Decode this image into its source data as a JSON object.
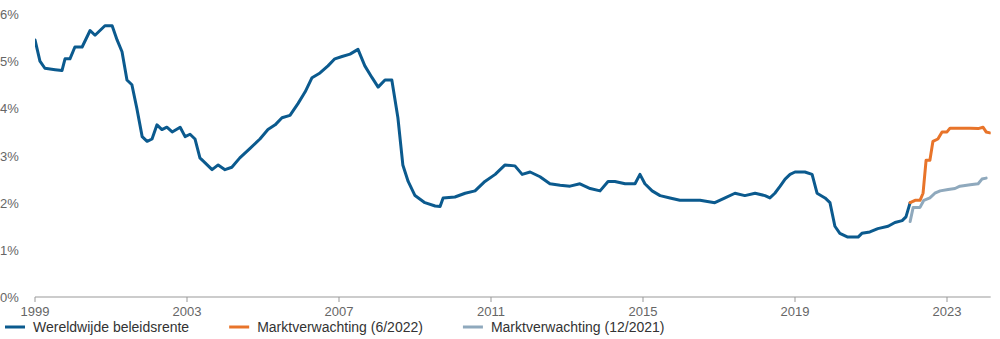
{
  "chart_data": {
    "type": "line",
    "xlim": [
      1999,
      2024.15
    ],
    "xticks": [
      1999,
      2003,
      2007,
      2011,
      2015,
      2019,
      2023
    ],
    "ylim": [
      0,
      6
    ],
    "yticks": [
      {
        "value": 0,
        "label": "0%"
      },
      {
        "value": 1,
        "label": "1%"
      },
      {
        "value": 2,
        "label": "2%"
      },
      {
        "value": 3,
        "label": "3%"
      },
      {
        "value": 4,
        "label": "4%"
      },
      {
        "value": 5,
        "label": "5%"
      },
      {
        "value": 6,
        "label": "6%"
      }
    ],
    "grid": false,
    "legend": "bottom",
    "series": [
      {
        "name": "Wereldwijde beleidsrente",
        "color": "#0b5a8e",
        "x": [
          1999.0,
          1999.13,
          1999.26,
          1999.53,
          1999.71,
          1999.79,
          1999.92,
          2000.05,
          2000.24,
          2000.45,
          2000.58,
          2000.71,
          2000.84,
          2001.03,
          2001.16,
          2001.29,
          2001.42,
          2001.55,
          2001.68,
          2001.82,
          2001.95,
          2002.08,
          2002.21,
          2002.34,
          2002.47,
          2002.61,
          2002.82,
          2002.95,
          2003.08,
          2003.21,
          2003.34,
          2003.47,
          2003.66,
          2003.82,
          2004.0,
          2004.18,
          2004.39,
          2004.66,
          2004.92,
          2005.13,
          2005.32,
          2005.5,
          2005.71,
          2005.92,
          2006.11,
          2006.29,
          2006.5,
          2006.71,
          2006.89,
          2007.08,
          2007.29,
          2007.5,
          2007.68,
          2007.87,
          2008.03,
          2008.21,
          2008.39,
          2008.55,
          2008.68,
          2008.82,
          2009.0,
          2009.26,
          2009.53,
          2009.66,
          2009.74,
          2010.05,
          2010.32,
          2010.58,
          2010.84,
          2011.11,
          2011.37,
          2011.63,
          2011.82,
          2012.03,
          2012.29,
          2012.55,
          2012.82,
          2013.08,
          2013.34,
          2013.61,
          2013.87,
          2014.08,
          2014.26,
          2014.53,
          2014.79,
          2014.92,
          2015.05,
          2015.24,
          2015.45,
          2015.71,
          2015.97,
          2016.5,
          2016.89,
          2017.16,
          2017.42,
          2017.68,
          2017.95,
          2018.21,
          2018.34,
          2018.47,
          2018.61,
          2018.74,
          2018.87,
          2019.0,
          2019.26,
          2019.45,
          2019.58,
          2019.79,
          2019.92,
          2020.05,
          2020.18,
          2020.39,
          2020.66,
          2020.76,
          2020.97,
          2021.18,
          2021.45,
          2021.63,
          2021.82,
          2021.92,
          2022.03
        ],
        "values": [
          5.45,
          5.0,
          4.85,
          4.82,
          4.8,
          5.05,
          5.05,
          5.3,
          5.3,
          5.65,
          5.55,
          5.65,
          5.75,
          5.75,
          5.45,
          5.2,
          4.6,
          4.5,
          4.0,
          3.4,
          3.3,
          3.35,
          3.65,
          3.55,
          3.6,
          3.5,
          3.6,
          3.4,
          3.45,
          3.35,
          2.95,
          2.85,
          2.7,
          2.8,
          2.7,
          2.75,
          2.95,
          3.15,
          3.35,
          3.55,
          3.65,
          3.8,
          3.85,
          4.1,
          4.35,
          4.65,
          4.75,
          4.9,
          5.05,
          5.1,
          5.15,
          5.25,
          4.9,
          4.65,
          4.45,
          4.6,
          4.6,
          3.8,
          2.8,
          2.45,
          2.15,
          2.0,
          1.93,
          1.92,
          2.1,
          2.12,
          2.2,
          2.25,
          2.45,
          2.6,
          2.8,
          2.78,
          2.6,
          2.65,
          2.55,
          2.4,
          2.37,
          2.35,
          2.4,
          2.3,
          2.25,
          2.45,
          2.45,
          2.4,
          2.4,
          2.6,
          2.4,
          2.25,
          2.15,
          2.1,
          2.05,
          2.05,
          2.0,
          2.1,
          2.2,
          2.15,
          2.2,
          2.15,
          2.1,
          2.2,
          2.35,
          2.5,
          2.6,
          2.65,
          2.65,
          2.6,
          2.2,
          2.1,
          2.0,
          1.5,
          1.35,
          1.27,
          1.27,
          1.35,
          1.38,
          1.45,
          1.5,
          1.58,
          1.62,
          1.7,
          2.0
        ]
      },
      {
        "name": "Marktverwachting (6/2022)",
        "color": "#e8742a",
        "x": [
          2022.03,
          2022.16,
          2022.29,
          2022.37,
          2022.45,
          2022.55,
          2022.63,
          2022.76,
          2022.87,
          2023.0,
          2023.08,
          2023.34,
          2023.61,
          2023.82,
          2023.95,
          2024.03,
          2024.13
        ],
        "values": [
          2.0,
          2.05,
          2.05,
          2.2,
          2.9,
          2.9,
          3.3,
          3.35,
          3.5,
          3.5,
          3.58,
          3.58,
          3.58,
          3.57,
          3.6,
          3.5,
          3.48
        ]
      },
      {
        "name": "Marktverwachting (12/2021)",
        "color": "#8fa9bd",
        "x": [
          2022.03,
          2022.11,
          2022.29,
          2022.39,
          2022.55,
          2022.68,
          2022.82,
          2023.03,
          2023.21,
          2023.34,
          2023.61,
          2023.82,
          2023.92,
          2024.03
        ],
        "values": [
          1.6,
          1.9,
          1.9,
          2.05,
          2.1,
          2.2,
          2.25,
          2.28,
          2.3,
          2.35,
          2.38,
          2.4,
          2.5,
          2.52
        ]
      }
    ]
  }
}
